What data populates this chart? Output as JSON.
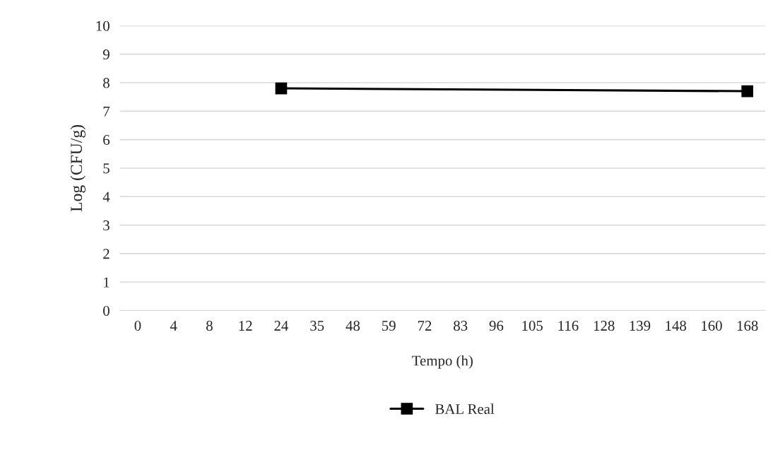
{
  "chart_data": {
    "type": "line",
    "xlabel": "Tempo (h)",
    "ylabel": "Log (CFU/g)",
    "categories": [
      "0",
      "4",
      "8",
      "12",
      "24",
      "35",
      "48",
      "59",
      "72",
      "83",
      "96",
      "105",
      "116",
      "128",
      "139",
      "148",
      "160",
      "168"
    ],
    "series": [
      {
        "name": "BAL Real",
        "color": "#000000",
        "values": [
          null,
          null,
          null,
          null,
          7.8,
          null,
          null,
          null,
          null,
          null,
          null,
          null,
          null,
          null,
          null,
          null,
          null,
          7.7
        ]
      }
    ],
    "ylim": [
      0,
      10
    ],
    "yticks": [
      0,
      1,
      2,
      3,
      4,
      5,
      6,
      7,
      8,
      9,
      10
    ],
    "grid": "y",
    "legend": "bottom",
    "marker": "square",
    "line_style": "solid"
  }
}
